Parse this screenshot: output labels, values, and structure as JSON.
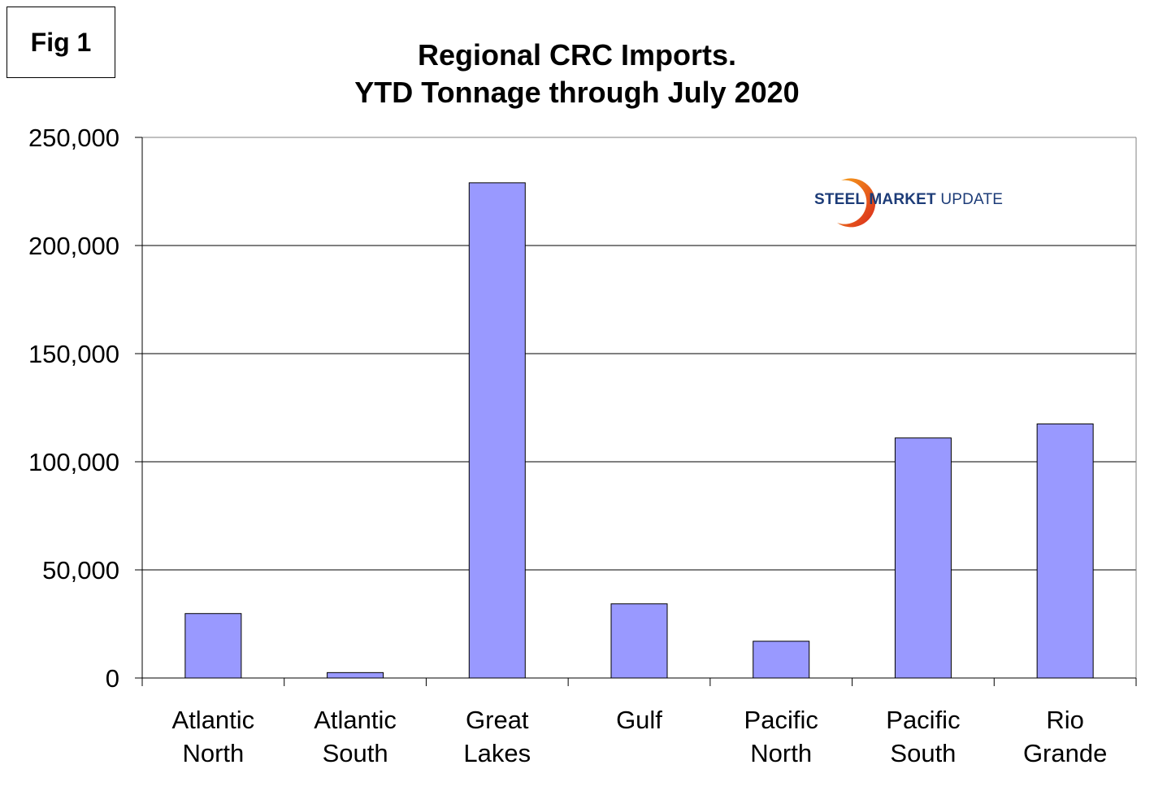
{
  "figure_label": "Fig 1",
  "logo": {
    "text_bold": "STEEL MARKET",
    "text_regular": " UPDATE",
    "icon": "swoosh-logo-icon",
    "colors": {
      "text": "#1d3c78",
      "swoosh_start": "#f7a21b",
      "swoosh_end": "#d9261c"
    }
  },
  "chart_data": {
    "type": "bar",
    "title": [
      "Regional CRC Imports.",
      "YTD Tonnage through July 2020"
    ],
    "xlabel": "",
    "ylabel": "",
    "categories": [
      [
        "Atlantic",
        "North"
      ],
      [
        "Atlantic",
        "South"
      ],
      [
        "Great",
        "Lakes"
      ],
      [
        "Gulf"
      ],
      [
        "Pacific",
        "North"
      ],
      [
        "Pacific",
        "South"
      ],
      [
        "Rio",
        "Grande"
      ]
    ],
    "values": [
      29800,
      2500,
      229000,
      34300,
      17000,
      111000,
      117500
    ],
    "ylim": [
      0,
      250000
    ],
    "yticks": [
      0,
      50000,
      100000,
      150000,
      200000,
      250000
    ],
    "ytick_labels": [
      "0",
      "50,000",
      "100,000",
      "150,000",
      "200,000",
      "250,000"
    ],
    "grid": true,
    "bar_color": "#9999ff",
    "legend": "none"
  }
}
